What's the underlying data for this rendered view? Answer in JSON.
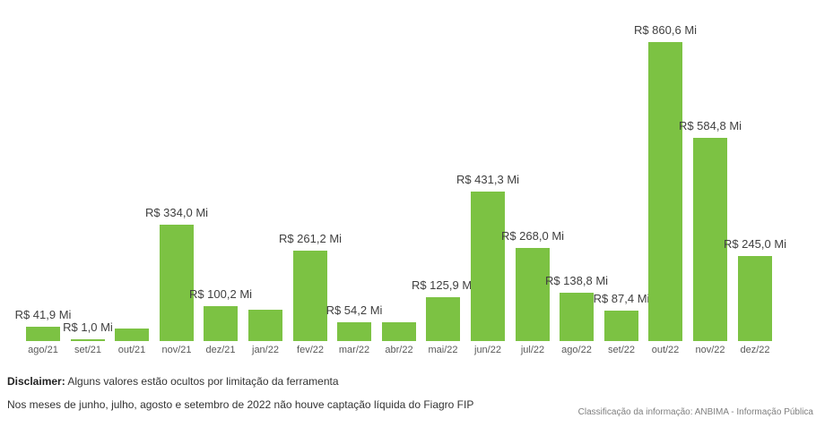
{
  "colors": {
    "bar": "#7CC243",
    "data_label": "#404040",
    "axis_label": "#595959",
    "disclaimer_text": "#333333",
    "classification_text": "#7f7f7f",
    "background": "#ffffff"
  },
  "chart_data": {
    "type": "bar",
    "title": "",
    "xlabel": "",
    "ylabel": "",
    "unit": "R$ Mi",
    "ylim": [
      0,
      900
    ],
    "grid": false,
    "legend": false,
    "bar_color": "#7CC243",
    "categories": [
      "ago/21",
      "set/21",
      "out/21",
      "nov/21",
      "dez/21",
      "jan/22",
      "fev/22",
      "mar/22",
      "abr/22",
      "mai/22",
      "jun/22",
      "jul/22",
      "ago/22",
      "set/22",
      "out/22",
      "nov/22",
      "dez/22"
    ],
    "values": [
      41.9,
      1.0,
      36,
      334.0,
      100.2,
      90,
      261.2,
      54.2,
      54,
      125.9,
      431.3,
      268.0,
      138.8,
      87.4,
      860.6,
      584.8,
      245.0
    ],
    "labels": [
      "R$ 41,9 Mi",
      "R$ 1,0 Mi",
      "",
      "R$ 334,0 Mi",
      "R$ 100,2 Mi",
      "",
      "R$ 261,2 Mi",
      "R$ 54,2 Mi",
      "",
      "R$ 125,9 Mi",
      "R$ 431,3 Mi",
      "R$ 268,0 Mi",
      "R$ 138,8 Mi",
      "R$ 87,4 Mi",
      "R$ 860,6 Mi",
      "R$ 584,8 Mi",
      "R$ 245,0 Mi"
    ],
    "hidden_label_categories": [
      "out/21",
      "jan/22",
      "abr/22"
    ],
    "hidden_values_are_estimates": true
  },
  "footer": {
    "disclaimer_bold": "Disclaimer:",
    "disclaimer_rest": " Alguns valores estão ocultos por limitação da ferramenta",
    "note": "Nos meses de junho, julho, agosto e setembro de 2022 não houve captação líquida do Fiagro FIP",
    "classification": "Classificação da informação: ANBIMA - Informação Pública"
  }
}
